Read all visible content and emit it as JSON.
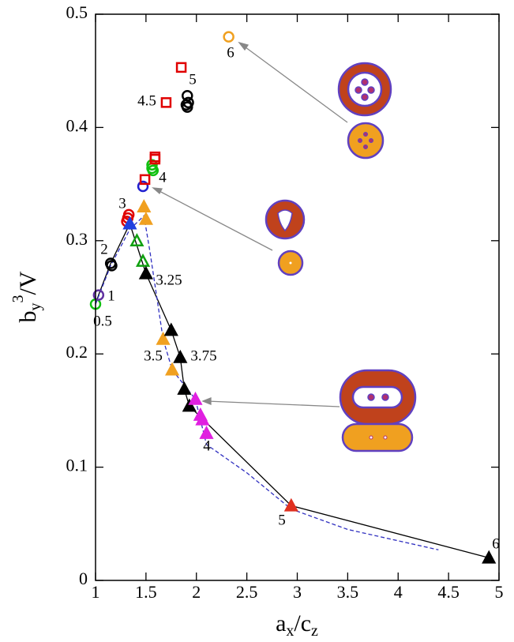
{
  "chart_data": {
    "type": "scatter",
    "xlabel": [
      "a",
      "x",
      "/c",
      "z"
    ],
    "ylabel": [
      "b",
      "y",
      "3",
      "/V"
    ],
    "xlim": [
      1,
      5
    ],
    "ylim": [
      0,
      0.5
    ],
    "xticks": [
      1,
      1.5,
      2,
      2.5,
      3,
      3.5,
      4,
      4.5,
      5
    ],
    "yticks": [
      0,
      0.1,
      0.2,
      0.3,
      0.4,
      0.5
    ],
    "lines": [
      {
        "color": "#000000",
        "dashed": false,
        "x": [
          1.0,
          1.03,
          1.15,
          1.34,
          1.5,
          1.75,
          1.84,
          1.88,
          1.93,
          2.94,
          4.9
        ],
        "y": [
          0.244,
          0.252,
          0.28,
          0.315,
          0.271,
          0.221,
          0.197,
          0.169,
          0.154,
          0.066,
          0.02
        ]
      },
      {
        "color": "#3030c0",
        "dashed": true,
        "x": [
          1.0,
          1.15,
          1.34,
          1.48,
          1.54,
          1.67,
          1.76,
          1.99,
          2.1,
          2.5,
          2.94,
          3.5,
          4.4
        ],
        "y": [
          0.244,
          0.278,
          0.31,
          0.322,
          0.29,
          0.213,
          0.186,
          0.16,
          0.12,
          0.095,
          0.063,
          0.045,
          0.027
        ]
      }
    ],
    "series": [
      {
        "marker": "circle",
        "filled": false,
        "color": "#10c010",
        "x": [
          1.0,
          1.56,
          1.57,
          1.56
        ],
        "y": [
          0.244,
          0.367,
          0.362,
          0.364
        ]
      },
      {
        "marker": "circle",
        "filled": false,
        "color": "#6030a0",
        "x": [
          1.03
        ],
        "y": [
          0.252
        ]
      },
      {
        "marker": "circle",
        "filled": false,
        "color": "#000000",
        "x": [
          1.15,
          1.16,
          1.91,
          1.92,
          1.91,
          1.9
        ],
        "y": [
          0.28,
          0.278,
          0.428,
          0.422,
          0.418,
          0.42
        ]
      },
      {
        "marker": "circle",
        "filled": false,
        "color": "#e00000",
        "x": [
          1.31,
          1.32,
          1.33
        ],
        "y": [
          0.317,
          0.32,
          0.323
        ]
      },
      {
        "marker": "circle",
        "filled": false,
        "color": "#2020d0",
        "x": [
          1.47
        ],
        "y": [
          0.348
        ]
      },
      {
        "marker": "square",
        "filled": false,
        "color": "#e00000",
        "x": [
          1.49,
          1.59,
          1.59,
          1.7,
          1.85
        ],
        "y": [
          0.354,
          0.374,
          0.372,
          0.422,
          0.453
        ]
      },
      {
        "marker": "circle",
        "filled": false,
        "color": "#f0a020",
        "x": [
          2.32
        ],
        "y": [
          0.48
        ]
      },
      {
        "marker": "triangle",
        "filled": true,
        "color": "#2040e0",
        "x": [
          1.34
        ],
        "y": [
          0.315
        ]
      },
      {
        "marker": "triangle",
        "filled": true,
        "color": "#f0a020",
        "x": [
          1.48,
          1.5,
          1.67,
          1.76
        ],
        "y": [
          0.33,
          0.319,
          0.213,
          0.186
        ]
      },
      {
        "marker": "triangle",
        "filled": false,
        "color": "#10a010",
        "x": [
          1.41,
          1.47
        ],
        "y": [
          0.3,
          0.282
        ]
      },
      {
        "marker": "triangle",
        "filled": true,
        "color": "#000000",
        "x": [
          1.5,
          1.75,
          1.84,
          1.88,
          1.93,
          4.9
        ],
        "y": [
          0.271,
          0.221,
          0.197,
          0.169,
          0.154,
          0.02
        ]
      },
      {
        "marker": "triangle",
        "filled": true,
        "color": "#e020e0",
        "x": [
          1.99,
          2.04,
          2.06,
          2.1
        ],
        "y": [
          0.16,
          0.146,
          0.142,
          0.13
        ]
      },
      {
        "marker": "triangle",
        "filled": true,
        "color": "#e03020",
        "x": [
          2.94
        ],
        "y": [
          0.066
        ]
      }
    ],
    "annotations": [
      "0.5",
      "1",
      "2",
      "3",
      "3.25",
      "3.5",
      "3.75",
      "4",
      "4",
      "4.5",
      "5",
      "5",
      "6",
      "6"
    ]
  }
}
